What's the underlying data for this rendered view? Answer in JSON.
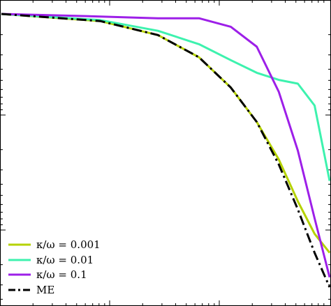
{
  "chart_data": {
    "type": "line",
    "title": "",
    "xlabel": "",
    "ylabel": "",
    "xscale": "log",
    "yscale": "log",
    "grid": false,
    "legend_position": "bottom-left",
    "x": [
      1,
      2,
      3,
      4,
      5,
      6,
      7,
      8,
      9,
      10
    ],
    "series": [
      {
        "name": "κ/ω = 0.001",
        "legend_label": "κ/ω = 0.001",
        "color": "#b5d200",
        "style": "solid",
        "values": [
          1.0,
          0.92,
          0.78,
          0.6,
          0.42,
          0.28,
          0.18,
          0.11,
          0.075,
          0.06
        ]
      },
      {
        "name": "κ/ω = 0.01",
        "legend_label": "κ/ω = 0.01",
        "color": "#3df2ae",
        "style": "solid",
        "values": [
          1.0,
          0.93,
          0.82,
          0.7,
          0.58,
          0.5,
          0.46,
          0.44,
          0.34,
          0.14
        ]
      },
      {
        "name": "κ/ω = 0.1",
        "legend_label": "κ/ω = 0.1",
        "color": "#9d1fe8",
        "style": "solid",
        "values": [
          1.0,
          0.97,
          0.95,
          0.95,
          0.86,
          0.68,
          0.4,
          0.2,
          0.09,
          0.045
        ]
      },
      {
        "name": "ME",
        "legend_label": "ME",
        "color": "#000000",
        "style": "dashdot",
        "values": [
          1.0,
          0.92,
          0.78,
          0.6,
          0.42,
          0.28,
          0.17,
          0.1,
          0.06,
          0.04
        ]
      }
    ]
  },
  "legend": {
    "items": [
      {
        "label": "κ/ω = 0.001",
        "color": "#b5d200",
        "style": "solid"
      },
      {
        "label": "κ/ω = 0.01",
        "color": "#3df2ae",
        "style": "solid"
      },
      {
        "label": "κ/ω = 0.1",
        "color": "#9d1fe8",
        "style": "solid"
      },
      {
        "label": "ME",
        "color": "#000000",
        "style": "dashdot"
      }
    ]
  }
}
